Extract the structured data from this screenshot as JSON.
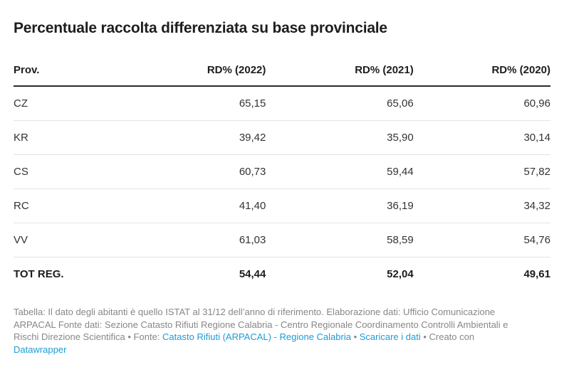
{
  "title": "Percentuale raccolta differenziata su base provinciale",
  "colors": {
    "link_blue": "#1d9bd7",
    "footer_gray": "#878787",
    "text_dark": "#1d1d1d",
    "body_text": "#333333",
    "header_border": "#2b2b2b",
    "row_border": "#e4e4e4",
    "background": "#ffffff"
  },
  "table": {
    "headers": [
      "Prov.",
      "RD% (2022)",
      "RD% (2021)",
      "RD% (2020)"
    ],
    "rows": [
      {
        "cells": [
          "CZ",
          "65,15",
          "65,06",
          "60,96"
        ]
      },
      {
        "cells": [
          "KR",
          "39,42",
          "35,90",
          "30,14"
        ]
      },
      {
        "cells": [
          "CS",
          "60,73",
          "59,44",
          "57,82"
        ]
      },
      {
        "cells": [
          "RC",
          "41,40",
          "36,19",
          "34,32"
        ]
      },
      {
        "cells": [
          "VV",
          "61,03",
          "58,59",
          "54,76"
        ]
      },
      {
        "cells": [
          "TOT REG.",
          "54,44",
          "52,04",
          "49,61"
        ]
      }
    ]
  },
  "footer": {
    "lines": [
      {
        "segments": [
          {
            "text": "Tabella: Il dato degli abitanti è quello ISTAT al 31/12 dell’anno di riferimento. Elaborazione dati: Ufficio Comunicazione",
            "link": false
          }
        ]
      },
      {
        "segments": [
          {
            "text": "ARPACAL Fonte dati: Sezione Catasto Rifiuti Regione Calabria - Centro Regionale Coordinamento Controlli Ambientali e",
            "link": false
          }
        ]
      },
      {
        "segments": [
          {
            "text": "Rischi Direzione Scientifica  • Fonte: ",
            "link": false
          },
          {
            "text": "Catasto Rifiuti (ARPACAL) - Regione Calabria",
            "link": true
          },
          {
            "text": " • ",
            "link": false
          },
          {
            "text": "Scaricare i dati",
            "link": true
          },
          {
            "text": " • Creato con",
            "link": false
          }
        ]
      },
      {
        "segments": [
          {
            "text": "Datawrapper",
            "link": true
          }
        ]
      }
    ]
  },
  "chart_data": {
    "type": "table",
    "title": "Percentuale raccolta differenziata su base provinciale",
    "columns": [
      "Prov.",
      "RD% (2022)",
      "RD% (2021)",
      "RD% (2020)"
    ],
    "categories": [
      "CZ",
      "KR",
      "CS",
      "RC",
      "VV",
      "TOT REG."
    ],
    "series": [
      {
        "name": "RD% (2022)",
        "values": [
          65.15,
          39.42,
          60.73,
          41.4,
          61.03,
          54.44
        ]
      },
      {
        "name": "RD% (2021)",
        "values": [
          65.06,
          35.9,
          59.44,
          36.19,
          58.59,
          52.04
        ]
      },
      {
        "name": "RD% (2020)",
        "values": [
          60.96,
          30.14,
          57.82,
          34.32,
          54.76,
          49.61
        ]
      }
    ],
    "value_format": "decimal-comma, 2 places",
    "notes": "Last row TOT REG. is bold regional total"
  }
}
